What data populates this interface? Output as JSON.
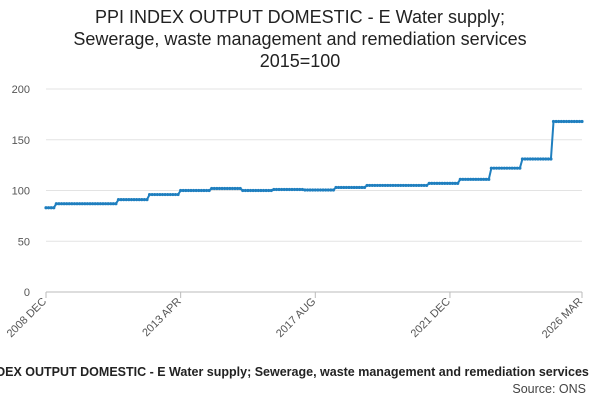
{
  "chart_data": {
    "type": "line",
    "title_lines": [
      "PPI INDEX OUTPUT DOMESTIC - E Water supply;",
      "Sewerage, waste management and remediation services",
      "2015=100"
    ],
    "xlabel": "",
    "ylabel": "",
    "ylim": [
      0,
      200
    ],
    "yticks": [
      0,
      50,
      100,
      150,
      200
    ],
    "xrange_months": [
      0,
      207
    ],
    "xticks": [
      {
        "label": "2008 DEC",
        "month": 0
      },
      {
        "label": "2013 APR",
        "month": 52
      },
      {
        "label": "2017 AUG",
        "month": 104
      },
      {
        "label": "2021 DEC",
        "month": 156
      },
      {
        "label": "2026 MAR",
        "month": 207
      }
    ],
    "grid": true,
    "series": [
      {
        "name": "PPI INDEX OUTPUT DOMESTIC - E Water supply; Sewerage, waste management and remediation services",
        "color": "#1f7fbf",
        "step_segments": [
          {
            "from": 0,
            "to": 3,
            "value": 83
          },
          {
            "from": 4,
            "to": 27,
            "value": 87
          },
          {
            "from": 28,
            "to": 39,
            "value": 91
          },
          {
            "from": 40,
            "to": 51,
            "value": 96
          },
          {
            "from": 52,
            "to": 63,
            "value": 100
          },
          {
            "from": 64,
            "to": 75,
            "value": 102
          },
          {
            "from": 76,
            "to": 87,
            "value": 100
          },
          {
            "from": 88,
            "to": 99,
            "value": 101
          },
          {
            "from": 100,
            "to": 111,
            "value": 100.5
          },
          {
            "from": 112,
            "to": 123,
            "value": 103
          },
          {
            "from": 124,
            "to": 135,
            "value": 105
          },
          {
            "from": 136,
            "to": 147,
            "value": 105
          },
          {
            "from": 148,
            "to": 159,
            "value": 107
          },
          {
            "from": 160,
            "to": 171,
            "value": 111
          },
          {
            "from": 172,
            "to": 183,
            "value": 122
          },
          {
            "from": 184,
            "to": 195,
            "value": 131
          },
          {
            "from": 196,
            "to": 207,
            "value": 168
          }
        ]
      }
    ]
  },
  "footer": {
    "series_label": "PPI INDEX OUTPUT DOMESTIC - E Water supply; Sewerage, waste management and remediation services",
    "source": "Source: ONS"
  }
}
